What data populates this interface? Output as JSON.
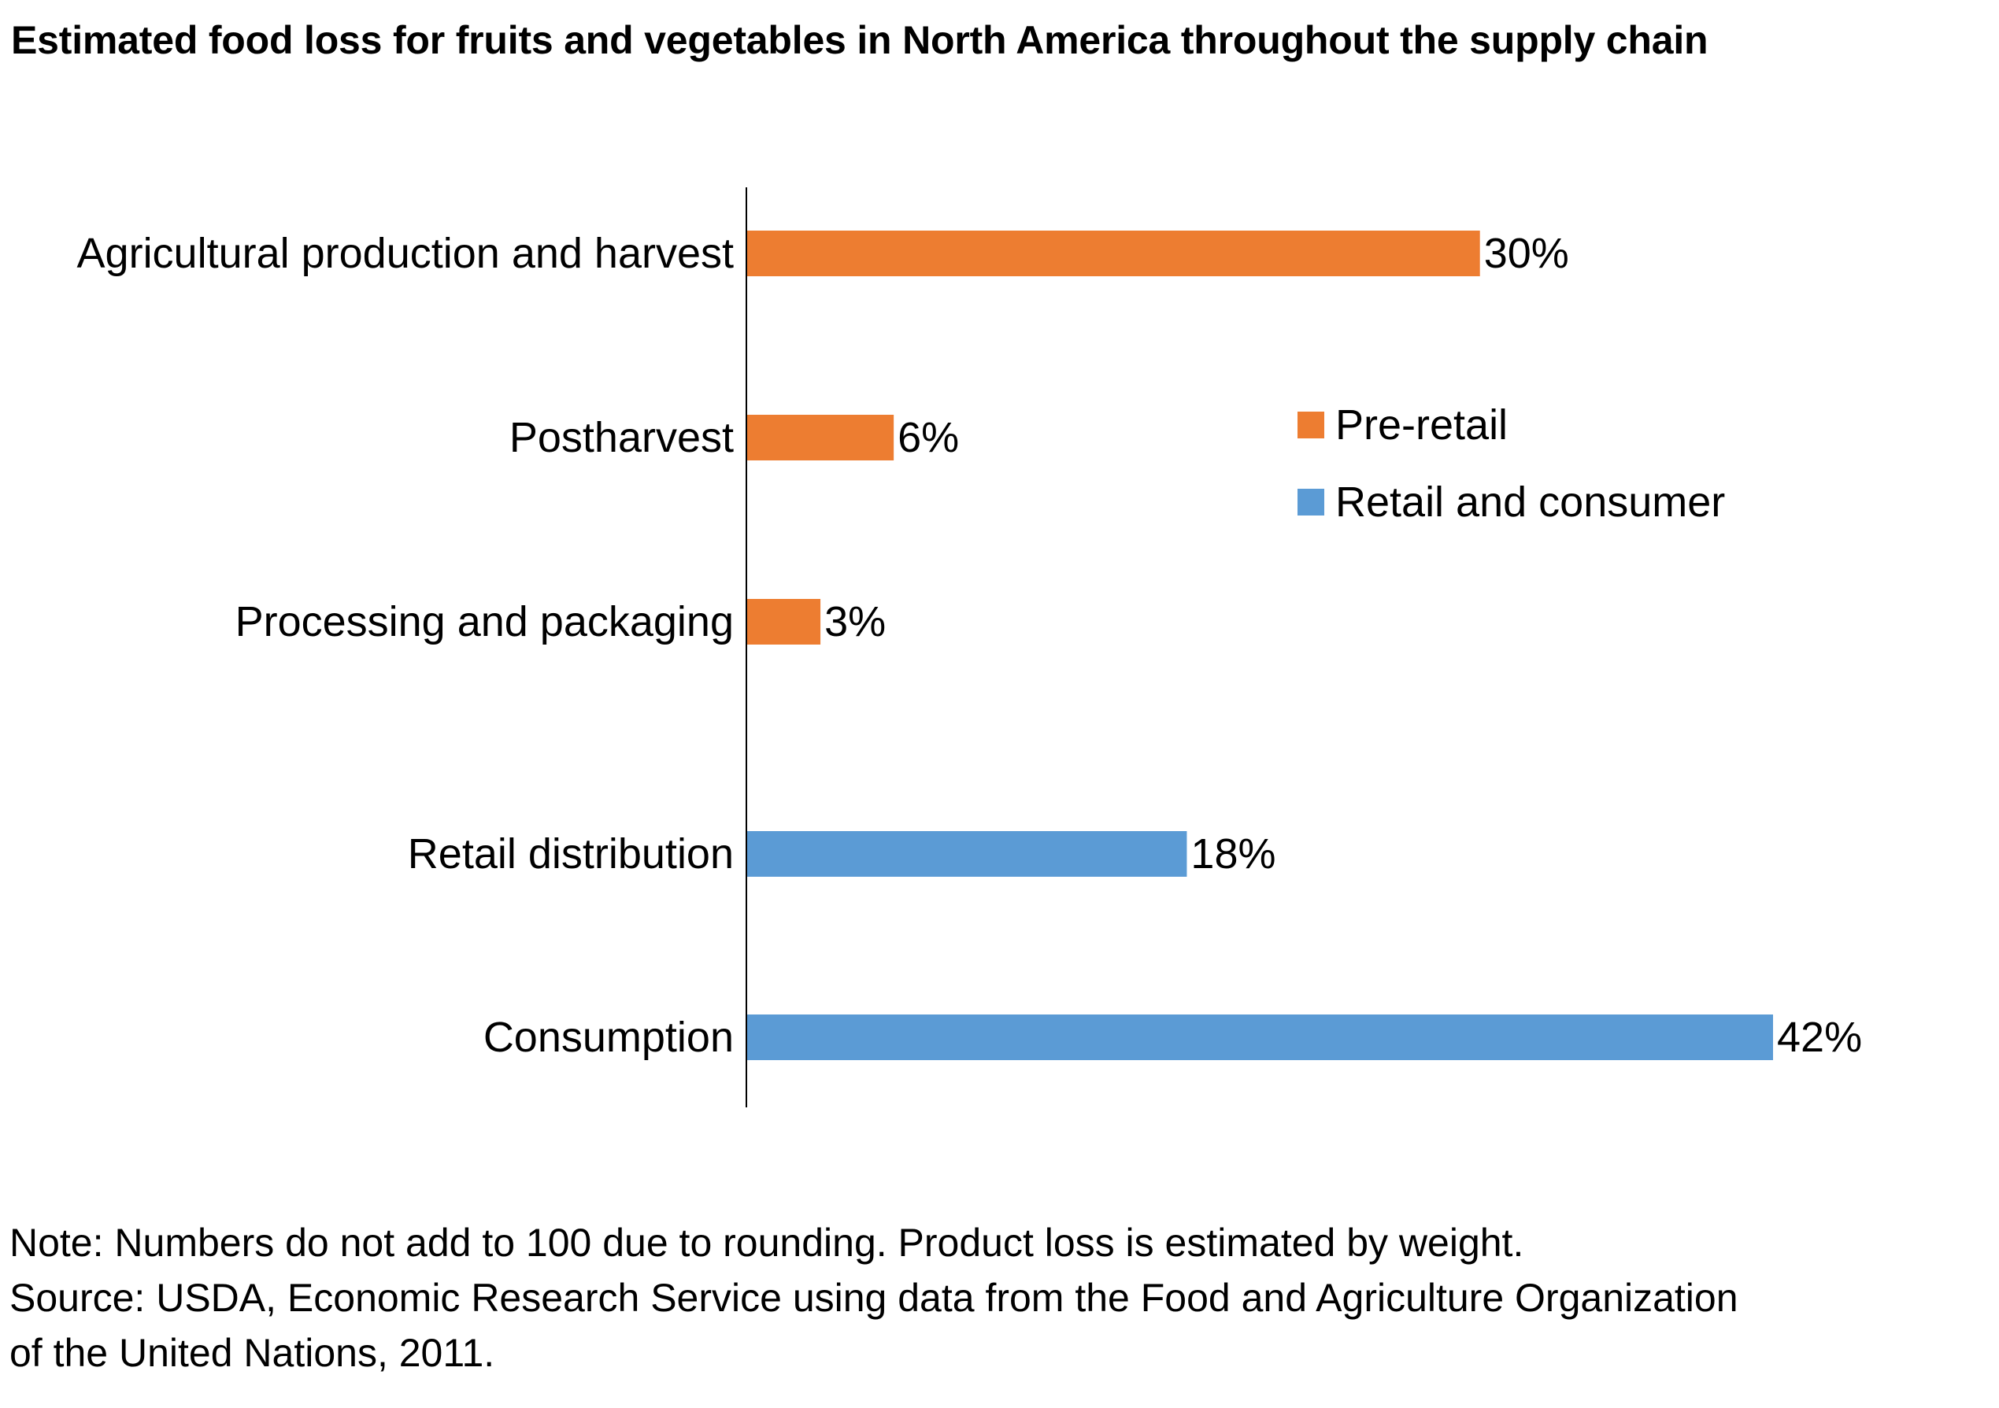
{
  "chart_data": {
    "type": "bar",
    "orientation": "horizontal",
    "title": "Estimated food loss for fruits and vegetables in North America throughout the supply chain",
    "xlabel": "",
    "ylabel": "",
    "xlim": [
      0,
      42
    ],
    "grid": false,
    "legend_position": "right",
    "unit_suffix": "%",
    "categories": [
      "Agricultural production and harvest",
      "Postharvest",
      "Processing and packaging",
      "Retail distribution",
      "Consumption"
    ],
    "values": [
      30,
      6,
      3,
      18,
      42
    ],
    "value_labels": [
      "30%",
      "6%",
      "3%",
      "18%",
      "42%"
    ],
    "groups": [
      "Pre-retail",
      "Pre-retail",
      "Pre-retail",
      "Retail and consumer",
      "Retail and consumer"
    ],
    "series": [
      {
        "name": "Pre-retail",
        "color": "#ed7d31",
        "categories": [
          "Agricultural production and harvest",
          "Postharvest",
          "Processing and packaging"
        ]
      },
      {
        "name": "Retail and consumer",
        "color": "#5b9bd5",
        "categories": [
          "Retail distribution",
          "Consumption"
        ]
      }
    ]
  },
  "notes": {
    "line1": "Note: Numbers do not add to 100 due to rounding. Product loss is estimated by weight.",
    "line2": "Source: USDA, Economic Research Service using data from the Food and Agriculture Organization",
    "line3": "of the United Nations, 2011."
  }
}
